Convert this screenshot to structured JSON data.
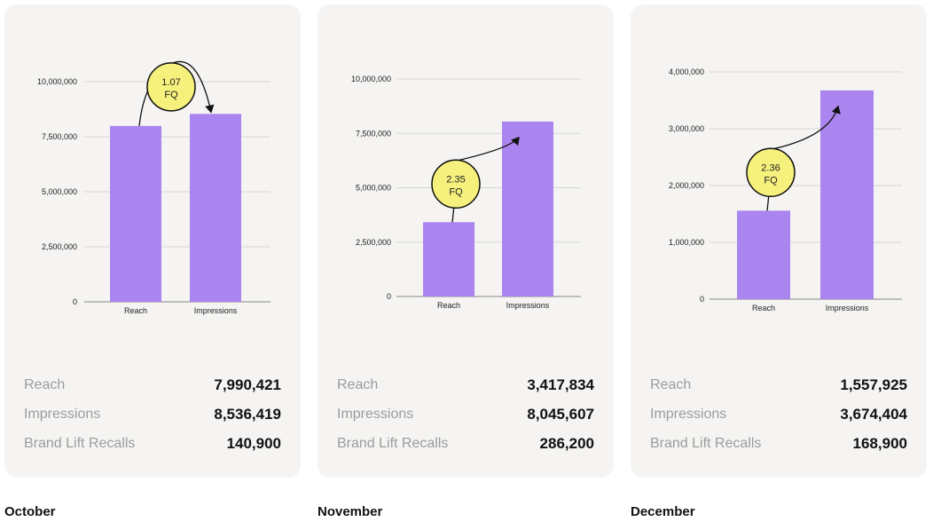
{
  "colors": {
    "bar": "#ab85ef",
    "bubble": "#f6f07d",
    "grid": "#d6d6d6",
    "axis": "#888888"
  },
  "panels": [
    {
      "month": "October",
      "stats": [
        {
          "label": "Reach",
          "value": "7,990,421"
        },
        {
          "label": "Impressions",
          "value": "8,536,419"
        },
        {
          "label": "Brand Lift Recalls",
          "value": "140,900"
        }
      ],
      "bubble": {
        "value": "1.07",
        "unit": "FQ"
      }
    },
    {
      "month": "November",
      "stats": [
        {
          "label": "Reach",
          "value": "3,417,834"
        },
        {
          "label": "Impressions",
          "value": "8,045,607"
        },
        {
          "label": "Brand Lift Recalls",
          "value": "286,200"
        }
      ],
      "bubble": {
        "value": "2.35",
        "unit": "FQ"
      }
    },
    {
      "month": "December",
      "stats": [
        {
          "label": "Reach",
          "value": "1,557,925"
        },
        {
          "label": "Impressions",
          "value": "3,674,404"
        },
        {
          "label": "Brand Lift Recalls",
          "value": "168,900"
        }
      ],
      "bubble": {
        "value": "2.36",
        "unit": "FQ"
      }
    }
  ],
  "chart_data": [
    {
      "type": "bar",
      "categories": [
        "Reach",
        "Impressions"
      ],
      "values": [
        7990421,
        8536419
      ],
      "ylim": [
        0,
        10000000
      ],
      "yticks": [
        0,
        2500000,
        5000000,
        7500000,
        10000000
      ],
      "ytick_labels": [
        "0",
        "2,500,000",
        "5,000,000",
        "7,500,000",
        "10,000,000"
      ],
      "grid": true
    },
    {
      "type": "bar",
      "categories": [
        "Reach",
        "Impressions"
      ],
      "values": [
        3417834,
        8045607
      ],
      "ylim": [
        0,
        10000000
      ],
      "yticks": [
        0,
        2500000,
        5000000,
        7500000,
        10000000
      ],
      "ytick_labels": [
        "0",
        "2,500,000",
        "5,000,000",
        "7,500,000",
        "10,000,000"
      ],
      "grid": true
    },
    {
      "type": "bar",
      "categories": [
        "Reach",
        "Impressions"
      ],
      "values": [
        1557925,
        3674404
      ],
      "ylim": [
        0,
        4000000
      ],
      "yticks": [
        0,
        1000000,
        2000000,
        3000000,
        4000000
      ],
      "ytick_labels": [
        "0",
        "1,000,000",
        "2,000,000",
        "3,000,000",
        "4,000,000"
      ],
      "grid": true
    }
  ]
}
